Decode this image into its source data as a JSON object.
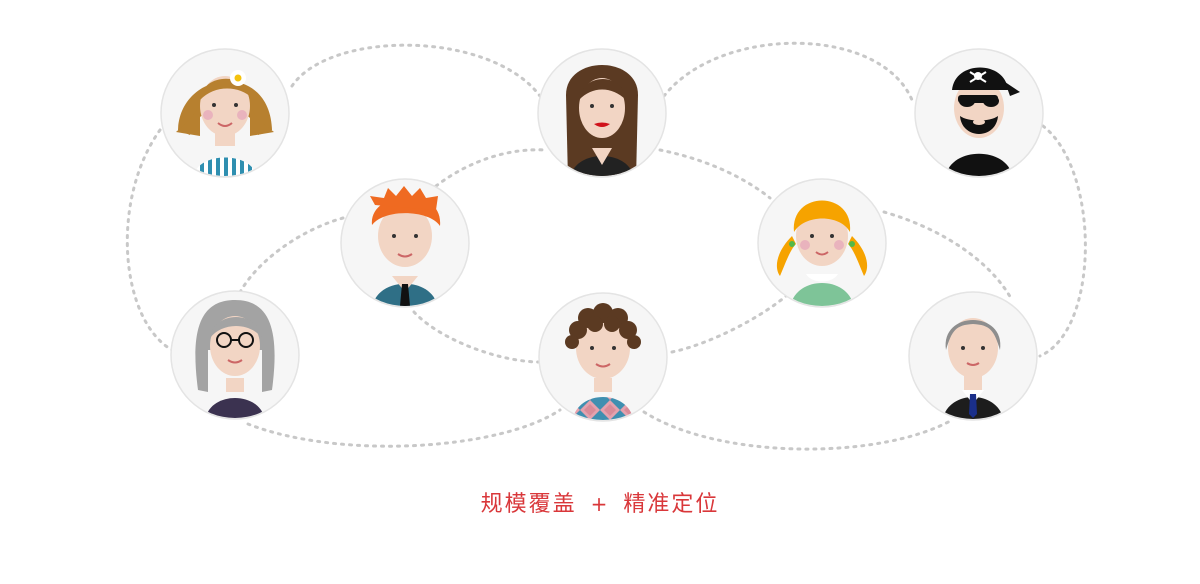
{
  "caption": {
    "left": "规模覆盖",
    "plus": "+",
    "right": "精准定位"
  },
  "colors": {
    "accent_text": "#d9373a",
    "connector": "#c8c8c8",
    "avatar_bg": "#f6f6f6",
    "avatar_ring": "#e4e4e4",
    "skin": "#f2d5c4"
  },
  "avatars": [
    {
      "name": "woman-flower-avatar",
      "icon": "woman-with-flower-icon"
    },
    {
      "name": "woman-long-hair-avatar",
      "icon": "woman-long-hair-icon"
    },
    {
      "name": "pirate-avatar",
      "icon": "pirate-icon"
    },
    {
      "name": "redhead-boy-avatar",
      "icon": "redhead-boy-tie-icon"
    },
    {
      "name": "blonde-girl-avatar",
      "icon": "girl-pigtails-icon"
    },
    {
      "name": "grandma-avatar",
      "icon": "grandma-glasses-icon"
    },
    {
      "name": "curly-boy-avatar",
      "icon": "curly-boy-argyle-icon"
    },
    {
      "name": "businessman-avatar",
      "icon": "gray-hair-businessman-icon"
    }
  ]
}
